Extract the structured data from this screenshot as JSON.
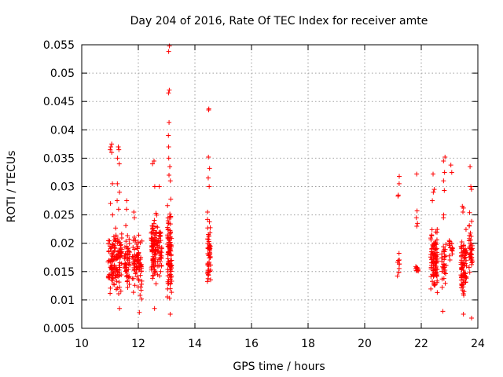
{
  "chart_data": {
    "type": "scatter",
    "title": "Day 204 of 2016, Rate Of TEC Index for receiver amte",
    "xlabel": "GPS time / hours",
    "ylabel": "ROTI / TECUs",
    "xlim": [
      10,
      24
    ],
    "ylim": [
      0.005,
      0.055
    ],
    "xticks": [
      10,
      12,
      14,
      16,
      18,
      20,
      22,
      24
    ],
    "yticks": [
      0.005,
      0.01,
      0.015,
      0.02,
      0.025,
      0.03,
      0.035,
      0.04,
      0.045,
      0.05,
      0.055
    ],
    "ytick_labels": [
      "0.005",
      "0.01",
      "0.015",
      "0.02",
      "0.025",
      "0.03",
      "0.035",
      "0.04",
      "0.045",
      "0.05",
      "0.055"
    ],
    "xtick_labels": [
      "10",
      "12",
      "14",
      "16",
      "18",
      "20",
      "22",
      "24"
    ],
    "grid": true,
    "marker": "+",
    "color": "#ff0000",
    "clusters": [
      {
        "x": 11.05,
        "spread": 0.12,
        "ymin": 0.0095,
        "ymax": 0.0235,
        "n": 70,
        "outliers": [
          0.0375,
          0.037,
          0.0365,
          0.036,
          0.0305,
          0.027,
          0.025
        ]
      },
      {
        "x": 11.3,
        "spread": 0.12,
        "ymin": 0.009,
        "ymax": 0.024,
        "n": 70,
        "outliers": [
          0.0365,
          0.037,
          0.035,
          0.034,
          0.0305,
          0.029,
          0.0275,
          0.026,
          0.0085
        ]
      },
      {
        "x": 11.6,
        "spread": 0.1,
        "ymin": 0.009,
        "ymax": 0.024,
        "n": 50,
        "outliers": [
          0.0275,
          0.026
        ]
      },
      {
        "x": 11.9,
        "spread": 0.12,
        "ymin": 0.01,
        "ymax": 0.023,
        "n": 50,
        "outliers": [
          0.0255,
          0.0245
        ]
      },
      {
        "x": 12.05,
        "spread": 0.08,
        "ymin": 0.009,
        "ymax": 0.023,
        "n": 35,
        "outliers": [
          0.0078
        ]
      },
      {
        "x": 12.55,
        "spread": 0.1,
        "ymin": 0.0095,
        "ymax": 0.028,
        "n": 90,
        "outliers": [
          0.0345,
          0.034,
          0.03,
          0.0085
        ]
      },
      {
        "x": 12.75,
        "spread": 0.08,
        "ymin": 0.012,
        "ymax": 0.025,
        "n": 40,
        "outliers": [
          0.03
        ]
      },
      {
        "x": 13.1,
        "spread": 0.08,
        "ymin": 0.008,
        "ymax": 0.029,
        "n": 100,
        "outliers": [
          0.0548,
          0.0538,
          0.047,
          0.0465,
          0.0413,
          0.039,
          0.037,
          0.035,
          0.0335,
          0.032,
          0.031,
          0.0075
        ]
      },
      {
        "x": 14.5,
        "spread": 0.06,
        "ymin": 0.0095,
        "ymax": 0.027,
        "n": 55,
        "outliers": [
          0.0437,
          0.0435,
          0.0352,
          0.0332,
          0.0315,
          0.03
        ]
      },
      {
        "x": 21.2,
        "spread": 0.05,
        "ymin": 0.013,
        "ymax": 0.0195,
        "n": 10,
        "outliers": [
          0.0318,
          0.0305,
          0.0285,
          0.0283
        ]
      },
      {
        "x": 21.85,
        "spread": 0.05,
        "ymin": 0.013,
        "ymax": 0.0185,
        "n": 10,
        "outliers": [
          0.0322,
          0.0257,
          0.0245,
          0.0235,
          0.023
        ]
      },
      {
        "x": 22.45,
        "spread": 0.12,
        "ymin": 0.0095,
        "ymax": 0.0245,
        "n": 100,
        "outliers": [
          0.0322,
          0.0295,
          0.029,
          0.0275
        ]
      },
      {
        "x": 22.8,
        "spread": 0.08,
        "ymin": 0.011,
        "ymax": 0.022,
        "n": 30,
        "outliers": [
          0.0352,
          0.0345,
          0.0325,
          0.031,
          0.0293,
          0.025,
          0.0245,
          0.008
        ]
      },
      {
        "x": 23.05,
        "spread": 0.06,
        "ymin": 0.014,
        "ymax": 0.0235,
        "n": 15,
        "outliers": [
          0.0338,
          0.0325
        ]
      },
      {
        "x": 23.5,
        "spread": 0.1,
        "ymin": 0.009,
        "ymax": 0.0235,
        "n": 80,
        "outliers": [
          0.0265,
          0.0262,
          0.0255,
          0.0075
        ]
      },
      {
        "x": 23.75,
        "spread": 0.06,
        "ymin": 0.0095,
        "ymax": 0.027,
        "n": 40,
        "outliers": [
          0.0335,
          0.03,
          0.0295,
          0.0068
        ]
      }
    ]
  }
}
